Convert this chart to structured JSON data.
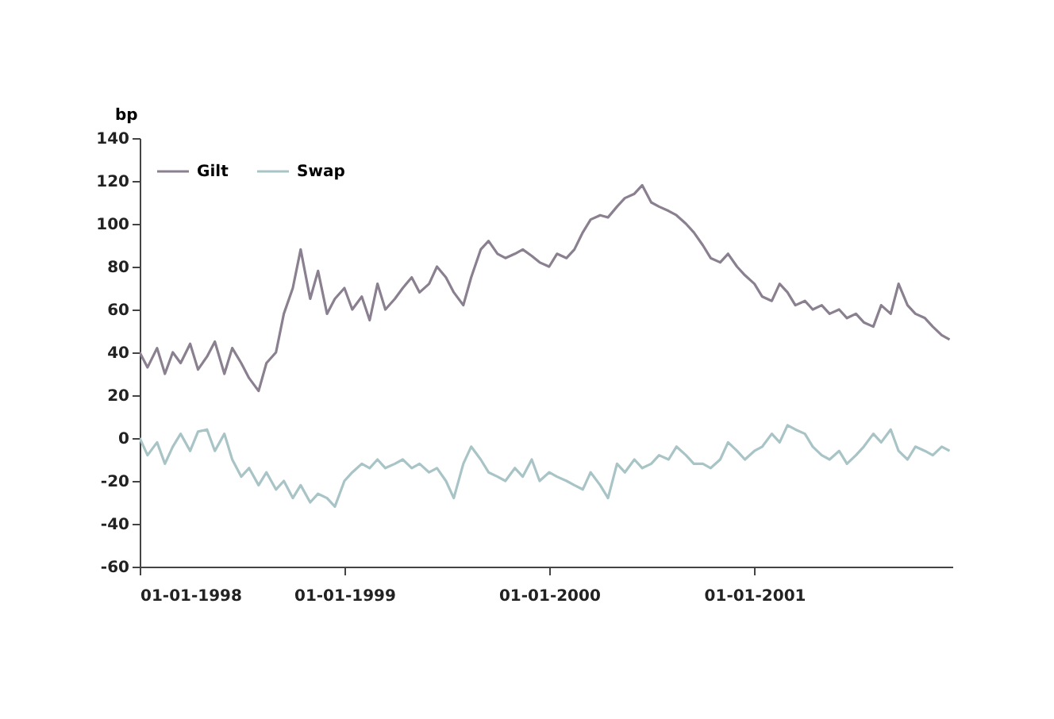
{
  "chart_data": {
    "type": "line",
    "ylabel": "bp",
    "x": [
      "1998-01-01",
      "1998-01-15",
      "1998-02-01",
      "1998-02-15",
      "1998-03-01",
      "1998-03-15",
      "1998-04-01",
      "1998-04-15",
      "1998-05-01",
      "1998-05-15",
      "1998-06-01",
      "1998-06-15",
      "1998-07-01",
      "1998-07-15",
      "1998-08-01",
      "1998-08-15",
      "1998-09-01",
      "1998-09-15",
      "1998-10-01",
      "1998-10-15",
      "1998-11-01",
      "1998-11-15",
      "1998-12-01",
      "1998-12-15",
      "1999-01-01",
      "1999-01-15",
      "1999-02-01",
      "1999-02-15",
      "1999-03-01",
      "1999-03-15",
      "1999-04-01",
      "1999-04-15",
      "1999-05-01",
      "1999-05-15",
      "1999-06-01",
      "1999-06-15",
      "1999-07-01",
      "1999-07-15",
      "1999-08-01",
      "1999-08-15",
      "1999-09-01",
      "1999-09-15",
      "1999-10-01",
      "1999-10-15",
      "1999-11-01",
      "1999-11-15",
      "1999-12-01",
      "1999-12-15",
      "2000-01-01",
      "2000-01-15",
      "2000-02-01",
      "2000-02-15",
      "2000-03-01",
      "2000-03-15",
      "2000-04-01",
      "2000-04-15",
      "2000-05-01",
      "2000-05-15",
      "2000-06-01",
      "2000-06-15",
      "2000-07-01",
      "2000-07-15",
      "2000-08-01",
      "2000-08-15",
      "2000-09-01",
      "2000-09-15",
      "2000-10-01",
      "2000-10-15",
      "2000-11-01",
      "2000-11-15",
      "2000-12-01",
      "2000-12-15",
      "2001-01-01",
      "2001-01-15",
      "2001-02-01",
      "2001-02-15",
      "2001-03-01",
      "2001-03-15",
      "2001-04-01",
      "2001-04-15",
      "2001-05-01",
      "2001-05-15",
      "2001-06-01",
      "2001-06-15",
      "2001-07-01",
      "2001-07-15",
      "2001-08-01",
      "2001-08-15",
      "2001-09-01",
      "2001-09-15",
      "2001-10-01",
      "2001-10-15",
      "2001-11-01",
      "2001-11-15",
      "2001-12-01",
      "2001-12-15"
    ],
    "series": [
      {
        "name": "Gilt",
        "color": "#8a8090",
        "values": [
          40,
          33,
          42,
          30,
          40,
          35,
          44,
          32,
          38,
          45,
          30,
          42,
          35,
          28,
          22,
          35,
          40,
          58,
          70,
          88,
          65,
          78,
          58,
          65,
          70,
          60,
          66,
          55,
          72,
          60,
          65,
          70,
          75,
          68,
          72,
          80,
          75,
          68,
          62,
          75,
          88,
          92,
          86,
          84,
          86,
          88,
          85,
          82,
          80,
          86,
          84,
          88,
          96,
          102,
          104,
          103,
          108,
          112,
          114,
          118,
          110,
          108,
          106,
          104,
          100,
          96,
          90,
          84,
          82,
          86,
          80,
          76,
          72,
          66,
          64,
          72,
          68,
          62,
          64,
          60,
          62,
          58,
          60,
          56,
          58,
          54,
          52,
          62,
          58,
          72,
          62,
          58,
          56,
          52,
          48,
          46
        ]
      },
      {
        "name": "Swap",
        "color": "#a9c4c6",
        "values": [
          0,
          -8,
          -2,
          -12,
          -4,
          2,
          -6,
          3,
          4,
          -6,
          2,
          -10,
          -18,
          -14,
          -22,
          -16,
          -24,
          -20,
          -28,
          -22,
          -30,
          -26,
          -28,
          -32,
          -20,
          -16,
          -12,
          -14,
          -10,
          -14,
          -12,
          -10,
          -14,
          -12,
          -16,
          -14,
          -20,
          -28,
          -12,
          -4,
          -10,
          -16,
          -18,
          -20,
          -14,
          -18,
          -10,
          -20,
          -16,
          -18,
          -20,
          -22,
          -24,
          -16,
          -22,
          -28,
          -12,
          -16,
          -10,
          -14,
          -12,
          -8,
          -10,
          -4,
          -8,
          -12,
          -12,
          -14,
          -10,
          -2,
          -6,
          -10,
          -6,
          -4,
          2,
          -2,
          6,
          4,
          2,
          -4,
          -8,
          -10,
          -6,
          -12,
          -8,
          -4,
          2,
          -2,
          4,
          -6,
          -10,
          -4,
          -6,
          -8,
          -4,
          -6
        ]
      }
    ],
    "xlim": [
      "1998-01-01",
      "2001-12-20"
    ],
    "xticks": [
      {
        "value": "1998-01-01",
        "label": "01-01-1998"
      },
      {
        "value": "1999-01-01",
        "label": "01-01-1999"
      },
      {
        "value": "2000-01-01",
        "label": "01-01-2000"
      },
      {
        "value": "2001-01-01",
        "label": "01-01-2001"
      }
    ],
    "ylim": [
      -60,
      140
    ],
    "yticks": [
      -60,
      -40,
      -20,
      0,
      20,
      40,
      60,
      80,
      100,
      120,
      140
    ],
    "legend": "top left",
    "line_style": "solid"
  }
}
